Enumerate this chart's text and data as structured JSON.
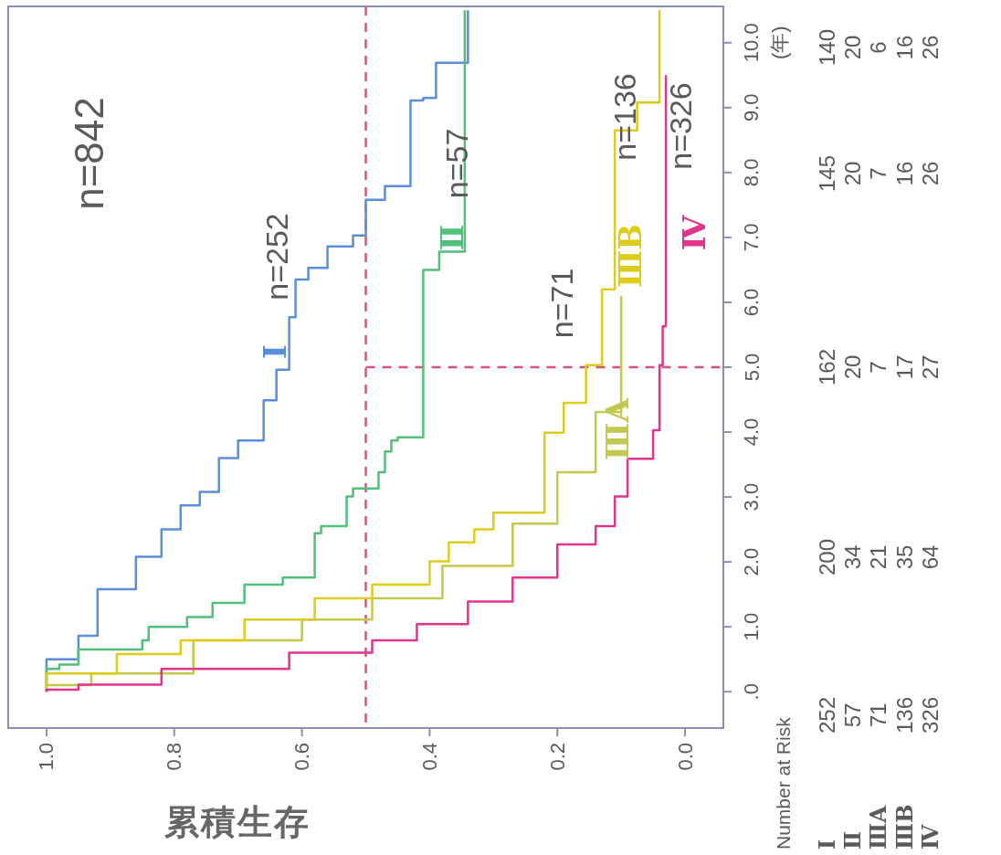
{
  "chart_data": {
    "type": "line",
    "xlabel": "累積生存",
    "ylabel": "(年)",
    "xlim": [
      1.06,
      -0.06
    ],
    "ylim": [
      -0.56,
      10.56
    ],
    "xticks": [
      {
        "value": 1,
        "label": "1.0"
      },
      {
        "value": 0.8,
        "label": "0.8"
      },
      {
        "value": 0.6,
        "label": "0.6"
      },
      {
        "value": 0.4,
        "label": "0.4"
      },
      {
        "value": 0.2,
        "label": "0.2"
      },
      {
        "value": 0,
        "label": "0.0"
      }
    ],
    "yticks": [
      {
        "value": 0,
        "label": ".0"
      },
      {
        "value": 1,
        "label": "1.0"
      },
      {
        "value": 2,
        "label": "2.0"
      },
      {
        "value": 3,
        "label": "3.0"
      },
      {
        "value": 4,
        "label": "4.0"
      },
      {
        "value": 5,
        "label": "5.0"
      },
      {
        "value": 6,
        "label": "6.0"
      },
      {
        "value": 7,
        "label": "7.0"
      },
      {
        "value": 8,
        "label": "8.0"
      },
      {
        "value": 9,
        "label": "9.0"
      },
      {
        "value": 10,
        "label": "10.0"
      }
    ],
    "legend": false,
    "line_style": "solid",
    "series": [
      {
        "name": "Ⅰ",
        "color": "#5b8ed8",
        "x": [
          1.0,
          1.0,
          0.95,
          0.95,
          0.92,
          0.92,
          0.86,
          0.86,
          0.82,
          0.82,
          0.79,
          0.79,
          0.76,
          0.76,
          0.73,
          0.73,
          0.7,
          0.7,
          0.66,
          0.66,
          0.64,
          0.64,
          0.62,
          0.62,
          0.61,
          0.61,
          0.59,
          0.59,
          0.56,
          0.56,
          0.52,
          0.52,
          0.5,
          0.5,
          0.47,
          0.47,
          0.43,
          0.43,
          0.41,
          0.41,
          0.39,
          0.39,
          0.34,
          0.34
        ],
        "values": [
          0,
          0.5,
          0.5,
          0.86,
          0.86,
          1.58,
          1.58,
          2.08,
          2.08,
          2.5,
          2.5,
          2.87,
          2.87,
          3.08,
          3.08,
          3.6,
          3.6,
          3.87,
          3.87,
          4.49,
          4.49,
          4.96,
          4.96,
          5.77,
          5.77,
          6.35,
          6.35,
          6.53,
          6.53,
          6.86,
          6.86,
          7.03,
          7.03,
          7.58,
          7.58,
          7.79,
          7.79,
          9.11,
          9.11,
          9.15,
          9.15,
          9.69,
          9.69,
          10.5
        ]
      },
      {
        "name": "Ⅱ",
        "color": "#52c07a",
        "x": [
          1.0,
          1.0,
          0.98,
          0.98,
          0.95,
          0.95,
          0.85,
          0.85,
          0.84,
          0.84,
          0.78,
          0.78,
          0.74,
          0.74,
          0.69,
          0.69,
          0.63,
          0.63,
          0.58,
          0.58,
          0.57,
          0.57,
          0.53,
          0.53,
          0.52,
          0.52,
          0.48,
          0.48,
          0.47,
          0.47,
          0.46,
          0.46,
          0.45,
          0.45,
          0.41,
          0.41,
          0.385,
          0.385,
          0.345,
          0.345
        ],
        "values": [
          0,
          0.35,
          0.35,
          0.42,
          0.42,
          0.65,
          0.65,
          0.79,
          0.79,
          1.0,
          1.0,
          1.15,
          1.15,
          1.37,
          1.37,
          1.65,
          1.65,
          1.76,
          1.76,
          2.44,
          2.44,
          2.55,
          2.55,
          3.01,
          3.01,
          3.13,
          3.13,
          3.38,
          3.38,
          3.7,
          3.7,
          3.87,
          3.87,
          3.92,
          3.92,
          6.5,
          6.5,
          6.78,
          6.78,
          10.5
        ]
      },
      {
        "name": "ⅢA",
        "color": "#c2c94e",
        "x": [
          1.0,
          1.0,
          0.93,
          0.93,
          0.77,
          0.77,
          0.6,
          0.6,
          0.49,
          0.49,
          0.38,
          0.38,
          0.27,
          0.27,
          0.2,
          0.2,
          0.14,
          0.14,
          0.1,
          0.1
        ],
        "values": [
          0,
          0.1,
          0.1,
          0.28,
          0.28,
          0.79,
          0.79,
          1.11,
          1.11,
          1.44,
          1.44,
          1.94,
          1.94,
          2.59,
          2.59,
          3.38,
          3.38,
          4.31,
          4.31,
          6.1
        ]
      },
      {
        "name": "ⅢB",
        "color": "#ddcc1c",
        "x": [
          1.0,
          1.0,
          0.89,
          0.89,
          0.79,
          0.79,
          0.69,
          0.69,
          0.58,
          0.58,
          0.49,
          0.49,
          0.4,
          0.4,
          0.37,
          0.37,
          0.33,
          0.33,
          0.3,
          0.3,
          0.22,
          0.22,
          0.19,
          0.19,
          0.155,
          0.155,
          0.13,
          0.13,
          0.11,
          0.11,
          0.075,
          0.075,
          0.04,
          0.04
        ],
        "values": [
          0,
          0.28,
          0.28,
          0.58,
          0.58,
          0.79,
          0.79,
          1.11,
          1.11,
          1.44,
          1.44,
          1.65,
          1.65,
          2.01,
          2.01,
          2.3,
          2.3,
          2.5,
          2.5,
          2.76,
          2.76,
          3.99,
          3.99,
          4.45,
          4.45,
          5.03,
          5.03,
          6.2,
          6.2,
          8.65,
          8.65,
          9.08,
          9.08,
          10.5
        ]
      },
      {
        "name": "Ⅳ",
        "color": "#e0358a",
        "x": [
          1.0,
          1.0,
          0.95,
          0.95,
          0.82,
          0.82,
          0.62,
          0.62,
          0.49,
          0.49,
          0.42,
          0.42,
          0.34,
          0.34,
          0.27,
          0.27,
          0.2,
          0.2,
          0.14,
          0.14,
          0.11,
          0.11,
          0.09,
          0.09,
          0.05,
          0.05,
          0.04,
          0.04,
          0.035,
          0.035,
          0.03,
          0.03
        ],
        "values": [
          0,
          0.03,
          0.03,
          0.11,
          0.11,
          0.35,
          0.35,
          0.6,
          0.6,
          0.79,
          0.79,
          1.04,
          1.04,
          1.39,
          1.39,
          1.76,
          1.76,
          2.27,
          2.27,
          2.55,
          2.55,
          3.01,
          3.01,
          3.59,
          3.59,
          4.03,
          4.03,
          5.03,
          5.03,
          5.63,
          5.63,
          9.5
        ]
      }
    ],
    "ref_lines": [
      {
        "axis": "x",
        "value": 0.5,
        "color": "#e0507a",
        "line_style": "dashed"
      },
      {
        "axis": "y",
        "value": 5,
        "color": "#e0507a",
        "line_style": "dashed"
      }
    ],
    "annotations": [
      "n=842",
      "n=252",
      "n=57",
      "n=71",
      "n=136",
      "n=326",
      "Number at Risk",
      "252",
      "57",
      "71",
      "136",
      "326",
      "200",
      "34",
      "21",
      "35",
      "64",
      "162",
      "20",
      "7",
      "17",
      "27",
      "145",
      "20",
      "7",
      "16",
      "26",
      "140",
      "20",
      "6",
      "16",
      "26"
    ]
  }
}
